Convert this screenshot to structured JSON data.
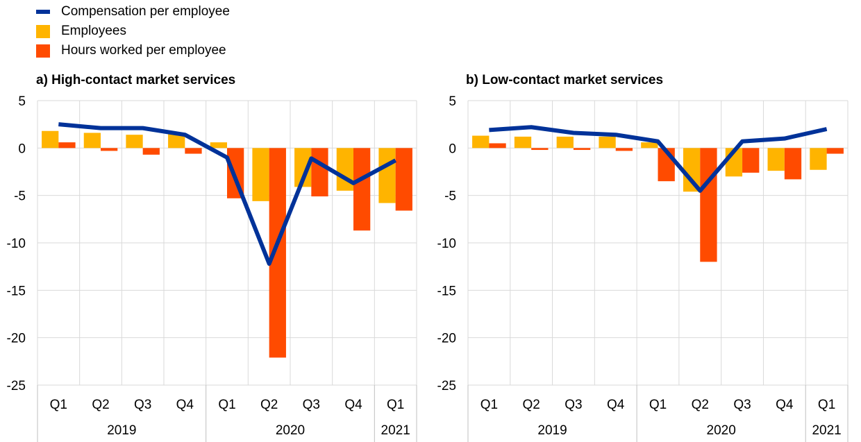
{
  "legend": {
    "items": [
      {
        "label": "Compensation per employee",
        "color": "#003299",
        "kind": "line"
      },
      {
        "label": "Employees",
        "color": "#FFB400",
        "kind": "bar"
      },
      {
        "label": "Hours worked per employee",
        "color": "#FF4B00",
        "kind": "bar"
      }
    ]
  },
  "colors": {
    "compensation": "#003299",
    "employees": "#FFB400",
    "hours": "#FF4B00",
    "grid": "#d9d9d9",
    "axis": "#bfbfbf"
  },
  "chart_data": [
    {
      "type": "bar",
      "title": "a) High-contact market services",
      "categories": [
        "Q1",
        "Q2",
        "Q3",
        "Q4",
        "Q1",
        "Q2",
        "Q3",
        "Q4",
        "Q1"
      ],
      "years": [
        {
          "label": "2019",
          "quarters": 4
        },
        {
          "label": "2020",
          "quarters": 4
        },
        {
          "label": "2021",
          "quarters": 1
        }
      ],
      "ylim": [
        -25,
        5
      ],
      "yticks": [
        5,
        0,
        -5,
        -10,
        -15,
        -20,
        -25
      ],
      "series": [
        {
          "name": "Employees",
          "kind": "bar",
          "values": [
            1.8,
            1.6,
            1.4,
            1.5,
            0.6,
            -5.6,
            -4.1,
            -4.5,
            -5.8
          ]
        },
        {
          "name": "Hours worked per employee",
          "kind": "bar",
          "values": [
            0.6,
            -0.3,
            -0.7,
            -0.6,
            -5.3,
            -22.1,
            -5.1,
            -8.7,
            -6.6
          ]
        },
        {
          "name": "Compensation per employee",
          "kind": "line",
          "values": [
            2.5,
            2.1,
            2.1,
            1.4,
            -1.0,
            -12.2,
            -1.1,
            -3.7,
            -1.3
          ]
        }
      ]
    },
    {
      "type": "bar",
      "title": "b) Low-contact market services",
      "categories": [
        "Q1",
        "Q2",
        "Q3",
        "Q4",
        "Q1",
        "Q2",
        "Q3",
        "Q4",
        "Q1"
      ],
      "years": [
        {
          "label": "2019",
          "quarters": 4
        },
        {
          "label": "2020",
          "quarters": 4
        },
        {
          "label": "2021",
          "quarters": 1
        }
      ],
      "ylim": [
        -25,
        5
      ],
      "yticks": [
        5,
        0,
        -5,
        -10,
        -15,
        -20,
        -25
      ],
      "series": [
        {
          "name": "Employees",
          "kind": "bar",
          "values": [
            1.3,
            1.2,
            1.2,
            1.2,
            0.6,
            -4.6,
            -3.0,
            -2.4,
            -2.3
          ]
        },
        {
          "name": "Hours worked per employee",
          "kind": "bar",
          "values": [
            0.5,
            -0.2,
            -0.2,
            -0.3,
            -3.5,
            -12.0,
            -2.6,
            -3.3,
            -0.6
          ]
        },
        {
          "name": "Compensation per employee",
          "kind": "line",
          "values": [
            1.9,
            2.2,
            1.6,
            1.4,
            0.7,
            -4.5,
            0.7,
            1.0,
            2.0
          ]
        }
      ]
    }
  ]
}
